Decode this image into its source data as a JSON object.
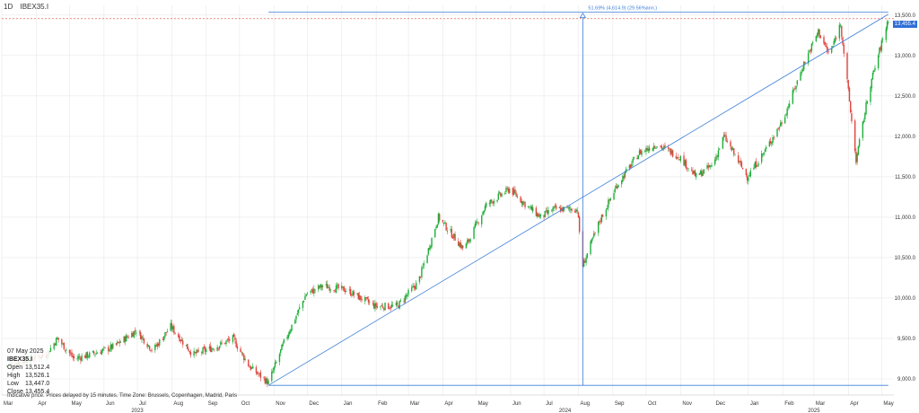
{
  "header": {
    "interval": "1D",
    "symbol": "IBEX35.I"
  },
  "measure_label": "51.69% (4,614.9) (29.56%ann.)",
  "info": {
    "date": "07 May 2025",
    "symbol": "IBEX35.I",
    "rows": [
      {
        "k": "Open",
        "v": "13,512.4"
      },
      {
        "k": "High",
        "v": "13,526.1"
      },
      {
        "k": "Low",
        "v": "13,447.0"
      },
      {
        "k": "Close",
        "v": "13,455.4"
      }
    ]
  },
  "disclaimer": "Indicative price. Prices delayed by 15 minutes.   Time Zone: Brussels, Copenhagen, Madrid, Paris",
  "price_tag": "13,455.4",
  "colors": {
    "up": "#1fae3a",
    "down": "#e0433c",
    "line": "#3d7fd9",
    "ref": "#e0433c",
    "grid": "#e8e8e8"
  },
  "chart_data": {
    "type": "candlestick",
    "instrument": "IBEX35.I",
    "yaxis": {
      "ticks": [
        "9,000.0",
        "9,500.0",
        "10,000.0",
        "10,500.0",
        "11,000.0",
        "11,500.0",
        "12,000.0",
        "12,500.0",
        "13,000.0",
        "13,500.0"
      ],
      "range": [
        8800,
        13620
      ]
    },
    "xaxis": {
      "months": [
        "Mar",
        "Apr",
        "May",
        "Jun",
        "Jul",
        "Aug",
        "Sep",
        "Oct",
        "Nov",
        "Dec",
        "Jan",
        "Feb",
        "Mar",
        "Apr",
        "May",
        "Jun",
        "Jul",
        "Aug",
        "Sep",
        "Oct",
        "Nov",
        "Dec",
        "Jan",
        "Feb",
        "Mar",
        "Apr",
        "May"
      ],
      "years": [
        "2023",
        "2024",
        "2025"
      ]
    },
    "close_path": [
      [
        "2023-03-01",
        9150
      ],
      [
        "2023-03-15",
        9200
      ],
      [
        "2023-04-10",
        9300
      ],
      [
        "2023-04-20",
        9500
      ],
      [
        "2023-05-05",
        9250
      ],
      [
        "2023-05-20",
        9300
      ],
      [
        "2023-06-10",
        9400
      ],
      [
        "2023-06-30",
        9600
      ],
      [
        "2023-07-15",
        9350
      ],
      [
        "2023-07-31",
        9650
      ],
      [
        "2023-08-20",
        9300
      ],
      [
        "2023-09-10",
        9400
      ],
      [
        "2023-09-25",
        9500
      ],
      [
        "2023-10-10",
        9150
      ],
      [
        "2023-10-27",
        8950
      ],
      [
        "2023-11-10",
        9450
      ],
      [
        "2023-11-30",
        10050
      ],
      [
        "2023-12-15",
        10150
      ],
      [
        "2024-01-05",
        10100
      ],
      [
        "2024-01-31",
        9900
      ],
      [
        "2024-02-20",
        9900
      ],
      [
        "2024-03-10",
        10200
      ],
      [
        "2024-03-28",
        11000
      ],
      [
        "2024-04-20",
        10600
      ],
      [
        "2024-05-10",
        11150
      ],
      [
        "2024-05-31",
        11350
      ],
      [
        "2024-06-15",
        11150
      ],
      [
        "2024-06-28",
        11000
      ],
      [
        "2024-07-10",
        11100
      ],
      [
        "2024-07-31",
        11100
      ],
      [
        "2024-08-05",
        10400
      ],
      [
        "2024-08-20",
        10950
      ],
      [
        "2024-09-05",
        11400
      ],
      [
        "2024-09-25",
        11800
      ],
      [
        "2024-10-10",
        11900
      ],
      [
        "2024-10-31",
        11750
      ],
      [
        "2024-11-15",
        11500
      ],
      [
        "2024-11-30",
        11650
      ],
      [
        "2024-12-10",
        12000
      ],
      [
        "2024-12-31",
        11500
      ],
      [
        "2025-01-15",
        11800
      ],
      [
        "2025-02-01",
        12200
      ],
      [
        "2025-02-20",
        12900
      ],
      [
        "2025-03-05",
        13300
      ],
      [
        "2025-03-15",
        13000
      ],
      [
        "2025-03-25",
        13400
      ],
      [
        "2025-04-08",
        11700
      ],
      [
        "2025-04-20",
        12600
      ],
      [
        "2025-05-07",
        13455.4
      ]
    ],
    "trendline": [
      [
        "2023-10-27",
        8920
      ],
      [
        "2025-05-07",
        13510
      ]
    ],
    "measure": {
      "from": [
        "2024-08-05",
        8920
      ],
      "to": [
        "2024-08-05",
        13535
      ],
      "pct": "51.69%",
      "points": "4,614.9",
      "annualized": "29.56%"
    },
    "horizontal_lines": [
      8920,
      13535
    ],
    "last_price": 13455.4
  }
}
